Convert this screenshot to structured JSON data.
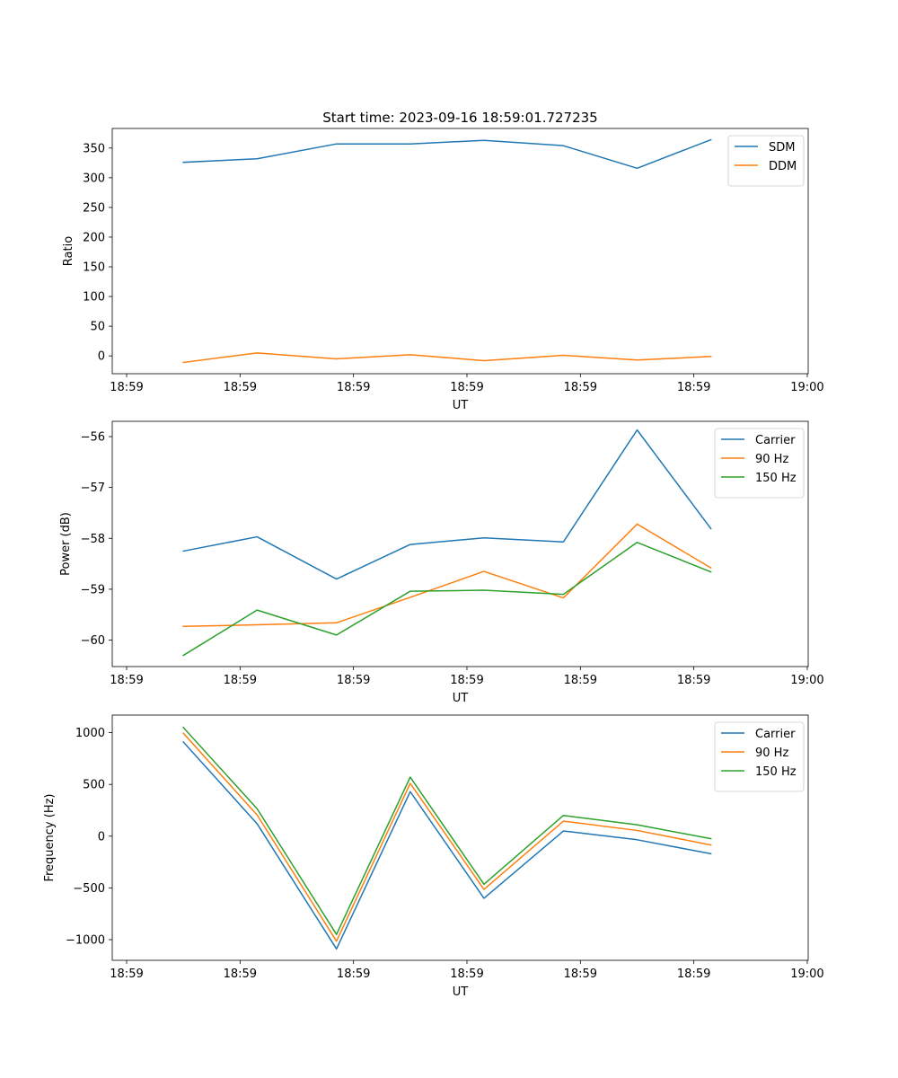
{
  "figure_title": "Start time: 2023-09-16 18:59:01.727235",
  "colors": {
    "c0": "#1f77b4",
    "c1": "#ff7f0e",
    "c2": "#2ca02c"
  },
  "chart_data": [
    {
      "type": "line",
      "title": "Start time: 2023-09-16 18:59:01.727235",
      "xlabel": "UT",
      "ylabel": "Ratio",
      "x": [
        0.5,
        1.15,
        1.85,
        2.5,
        3.15,
        3.85,
        4.5,
        5.15
      ],
      "xlim": [
        0,
        6.0
      ],
      "xticks": [
        0.0,
        1.0,
        2.0,
        3.0,
        4.0,
        5.0,
        6.0
      ],
      "xticklabels": [
        "18:59",
        "18:59",
        "18:59",
        "18:59",
        "18:59",
        "18:59",
        "19:00"
      ],
      "ylim": [
        -30,
        383
      ],
      "yticks": [
        0,
        50,
        100,
        150,
        200,
        250,
        300,
        350
      ],
      "yticklabels": [
        "0",
        "50",
        "100",
        "150",
        "200",
        "250",
        "300",
        "350"
      ],
      "legend_loc": "upper-right",
      "grid": false,
      "series": [
        {
          "name": "SDM",
          "color": "#1f77b4",
          "values": [
            326,
            332,
            357,
            357,
            363,
            354,
            316,
            364
          ]
        },
        {
          "name": "DDM",
          "color": "#ff7f0e",
          "values": [
            -11,
            5,
            -5,
            2,
            -8,
            1,
            -7,
            -1
          ]
        }
      ]
    },
    {
      "type": "line",
      "title": "",
      "xlabel": "UT",
      "ylabel": "Power (dB)",
      "x": [
        0.5,
        1.15,
        1.85,
        2.5,
        3.15,
        3.85,
        4.5,
        5.15
      ],
      "xlim": [
        0,
        6.0
      ],
      "xticks": [
        0.0,
        1.0,
        2.0,
        3.0,
        4.0,
        5.0,
        6.0
      ],
      "xticklabels": [
        "18:59",
        "18:59",
        "18:59",
        "18:59",
        "18:59",
        "18:59",
        "19:00"
      ],
      "ylim": [
        -60.52,
        -55.7
      ],
      "yticks": [
        -60,
        -59,
        -58,
        -57,
        -56
      ],
      "yticklabels": [
        "−60",
        "−59",
        "−58",
        "−57",
        "−56"
      ],
      "legend_loc": "upper-right",
      "grid": false,
      "series": [
        {
          "name": "Carrier",
          "color": "#1f77b4",
          "values": [
            -58.25,
            -57.97,
            -58.8,
            -58.12,
            -57.99,
            -58.07,
            -55.87,
            -57.81
          ]
        },
        {
          "name": "90 Hz",
          "color": "#ff7f0e",
          "values": [
            -59.73,
            -59.7,
            -59.66,
            -59.16,
            -58.65,
            -59.17,
            -57.72,
            -58.58
          ]
        },
        {
          "name": "150 Hz",
          "color": "#2ca02c",
          "values": [
            -60.3,
            -59.41,
            -59.9,
            -59.04,
            -59.02,
            -59.1,
            -58.08,
            -58.66
          ]
        }
      ]
    },
    {
      "type": "line",
      "title": "",
      "xlabel": "UT",
      "ylabel": "Frequency (Hz)",
      "x": [
        0.5,
        1.15,
        1.85,
        2.5,
        3.15,
        3.85,
        4.5,
        5.15
      ],
      "xlim": [
        0,
        6.0
      ],
      "xticks": [
        0.0,
        1.0,
        2.0,
        3.0,
        4.0,
        5.0,
        6.0
      ],
      "xticklabels": [
        "18:59",
        "18:59",
        "18:59",
        "18:59",
        "18:59",
        "18:59",
        "19:00"
      ],
      "ylim": [
        -1200,
        1170
      ],
      "yticks": [
        -1000,
        -500,
        0,
        500,
        1000
      ],
      "yticklabels": [
        "−1000",
        "−500",
        "0",
        "500",
        "1000"
      ],
      "legend_loc": "upper-right",
      "grid": false,
      "series": [
        {
          "name": "Carrier",
          "color": "#1f77b4",
          "values": [
            910,
            120,
            -1090,
            430,
            -600,
            50,
            -35,
            -170
          ]
        },
        {
          "name": "90 Hz",
          "color": "#ff7f0e",
          "values": [
            995,
            205,
            -1015,
            510,
            -515,
            145,
            55,
            -85
          ]
        },
        {
          "name": "150 Hz",
          "color": "#2ca02c",
          "values": [
            1050,
            265,
            -950,
            570,
            -465,
            200,
            110,
            -25
          ]
        }
      ]
    }
  ]
}
